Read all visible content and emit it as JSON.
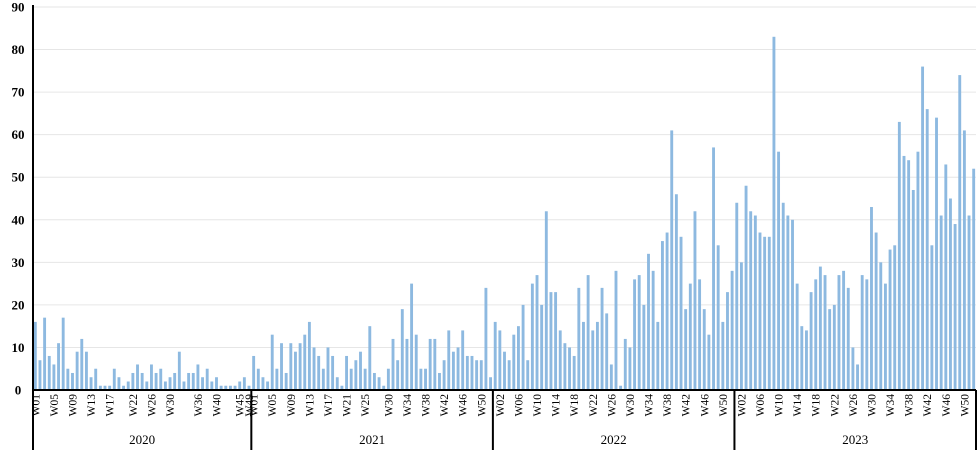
{
  "chart_data": {
    "type": "bar",
    "title": "",
    "xlabel": "",
    "ylabel": "",
    "ylim": [
      0,
      90
    ],
    "yticks": [
      0,
      10,
      20,
      30,
      40,
      50,
      60,
      70,
      80,
      90
    ],
    "grid": true,
    "legend": "none",
    "bar_color": "#8db9e0",
    "years": [
      {
        "label": "2020",
        "week_labels": [
          "W01",
          "W05",
          "W09",
          "W13",
          "W17",
          "W22",
          "W26",
          "W30",
          "W36",
          "W40",
          "W45",
          "W49"
        ],
        "values": [
          16,
          7,
          17,
          8,
          6,
          11,
          17,
          5,
          4,
          9,
          12,
          9,
          3,
          5,
          1,
          1,
          1,
          5,
          3,
          1,
          2,
          4,
          6,
          4,
          2,
          6,
          4,
          5,
          2,
          3,
          4,
          9,
          2,
          4,
          4,
          6,
          3,
          5,
          2,
          3,
          1,
          1,
          1,
          1,
          2,
          3,
          1
        ]
      },
      {
        "label": "2021",
        "week_labels": [
          "W01",
          "W05",
          "W09",
          "W13",
          "W17",
          "W21",
          "W25",
          "W30",
          "W34",
          "W38",
          "W42",
          "W46",
          "W50"
        ],
        "values": [
          8,
          5,
          3,
          2,
          13,
          5,
          11,
          4,
          11,
          9,
          11,
          13,
          16,
          10,
          8,
          5,
          10,
          8,
          3,
          1,
          8,
          5,
          7,
          9,
          5,
          15,
          4,
          3,
          1,
          5,
          12,
          7,
          19,
          12,
          25,
          13,
          5,
          5,
          12,
          12,
          4,
          7,
          14,
          9,
          10,
          14,
          8,
          8,
          7,
          7,
          24,
          3
        ]
      },
      {
        "label": "2022",
        "week_labels": [
          "W02",
          "W06",
          "W10",
          "W14",
          "W18",
          "W22",
          "W26",
          "W30",
          "W34",
          "W38",
          "W42",
          "W46",
          "W50"
        ],
        "values": [
          16,
          14,
          9,
          7,
          13,
          15,
          20,
          7,
          25,
          27,
          20,
          42,
          23,
          23,
          14,
          11,
          10,
          8,
          24,
          16,
          27,
          14,
          16,
          24,
          18,
          6,
          28,
          1,
          12,
          10,
          26,
          27,
          20,
          32,
          28,
          16,
          35,
          37,
          61,
          46,
          36,
          19,
          25,
          42,
          26,
          19,
          13,
          57,
          34,
          16,
          23,
          28
        ]
      },
      {
        "label": "2023",
        "week_labels": [
          "W02",
          "W06",
          "W10",
          "W14",
          "W18",
          "W22",
          "W26",
          "W30",
          "W34",
          "W38",
          "W42",
          "W46",
          "W50"
        ],
        "values": [
          44,
          30,
          48,
          42,
          41,
          37,
          36,
          36,
          83,
          56,
          44,
          41,
          40,
          25,
          15,
          14,
          23,
          26,
          29,
          27,
          19,
          20,
          27,
          28,
          24,
          10,
          6,
          27,
          26,
          43,
          37,
          30,
          25,
          33,
          34,
          63,
          55,
          54,
          47,
          56,
          76,
          66,
          34,
          64,
          41,
          53,
          45,
          39,
          74,
          61,
          41,
          52
        ]
      }
    ]
  }
}
